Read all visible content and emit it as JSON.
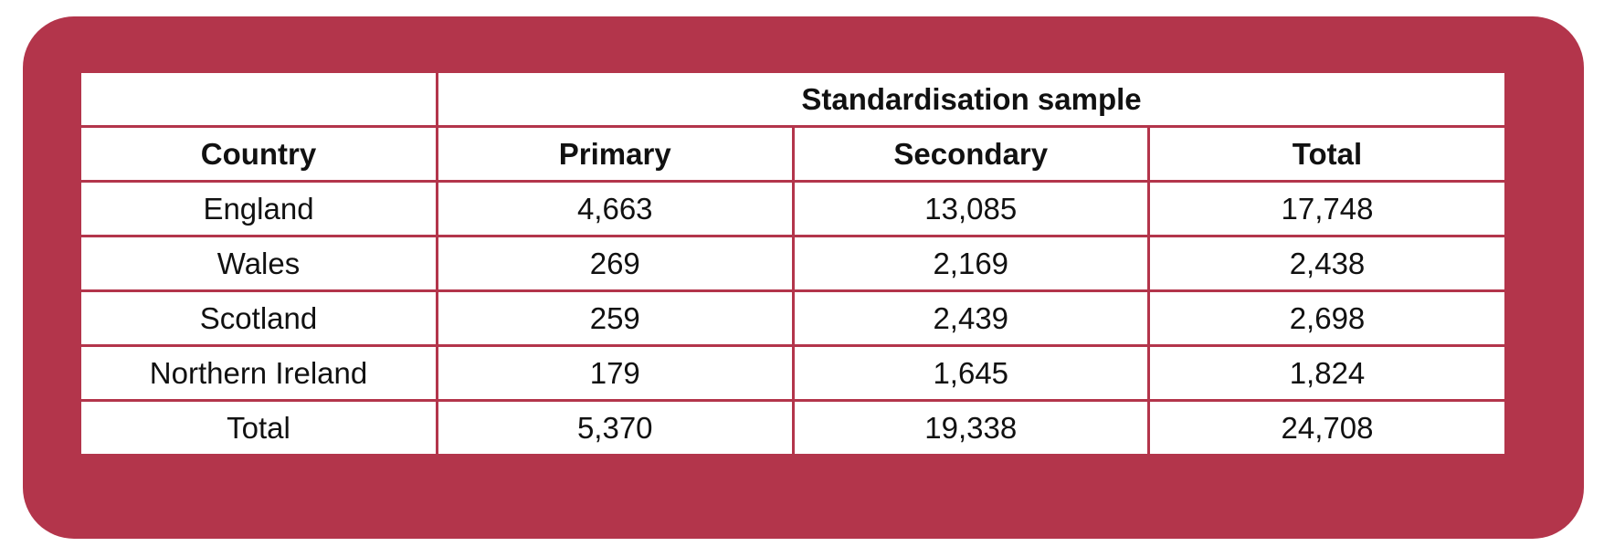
{
  "table": {
    "group_header": "Standardisation sample",
    "columns": [
      "Country",
      "Primary",
      "Secondary",
      "Total"
    ],
    "rows": [
      [
        "England",
        "4,663",
        "13,085",
        "17,748"
      ],
      [
        "Wales",
        "269",
        "2,169",
        "2,438"
      ],
      [
        "Scotland",
        "259",
        "2,439",
        "2,698"
      ],
      [
        "Northern Ireland",
        "179",
        "1,645",
        "1,824"
      ],
      [
        "Total",
        "5,370",
        "19,338",
        "24,708"
      ]
    ]
  }
}
